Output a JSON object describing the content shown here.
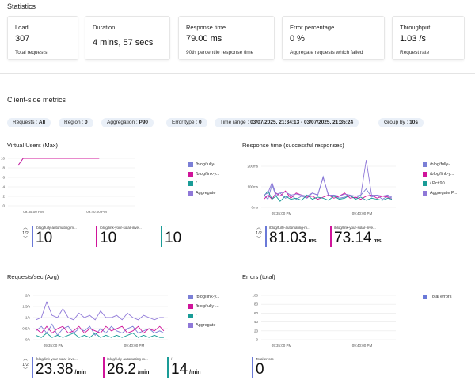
{
  "statistics": {
    "title": "Statistics",
    "cards": [
      {
        "label": "Load",
        "value": "307",
        "sub": "Total requests"
      },
      {
        "label": "Duration",
        "value": "4 mins, 57 secs",
        "sub": ""
      },
      {
        "label": "Response time",
        "value": "79.00 ms",
        "sub": "90th percentile response time"
      },
      {
        "label": "Error percentage",
        "value": "0 %",
        "sub": "Aggregate requests which failed"
      },
      {
        "label": "Throughput",
        "value": "1.03 /s",
        "sub": "Request rate"
      }
    ]
  },
  "client_metrics": {
    "title": "Client-side metrics",
    "filters": [
      {
        "label": "Requests",
        "value": "All"
      },
      {
        "label": "Region",
        "value": "0"
      },
      {
        "label": "Aggregation",
        "value": "P90"
      },
      {
        "label": "Error type",
        "value": "0"
      },
      {
        "label": "Time range",
        "value": "03/07/2025, 21:34:13 - 03/07/2025, 21:35:24"
      },
      {
        "label": "Group by",
        "value": "10s"
      }
    ]
  },
  "colors": {
    "aggregate": "#7b7fd6",
    "purple": "#d0149a",
    "teal": "#1a9c97",
    "violet": "#8f78d8",
    "blue": "#6a79d8"
  },
  "charts": {
    "vu": {
      "title": "Virtual Users (Max)",
      "legend": [
        "/blog/fully-...",
        "/blog/link-y...",
        "/",
        "Aggregate"
      ],
      "pager": "1/2",
      "tiles": [
        {
          "label": "/blog/fully-automating-m...",
          "value": "10",
          "unit": ""
        },
        {
          "label": "/blog/link-your-solar-inve...",
          "value": "10",
          "unit": ""
        },
        {
          "label": "/",
          "value": "10",
          "unit": ""
        }
      ]
    },
    "rt": {
      "title": "Response time (successful responses)",
      "legend": [
        "/blog/fully-...",
        "/blog/link-y...",
        "/ Pct 90",
        "Aggregate P..."
      ],
      "pager": "1/2",
      "tiles": [
        {
          "label": "/blog/fully-automating-m...",
          "value": "81.03",
          "unit": "ms"
        },
        {
          "label": "/blog/link-your-solar-inve...",
          "value": "73.14",
          "unit": "ms"
        }
      ]
    },
    "rps": {
      "title": "Requests/sec (Avg)",
      "legend": [
        "/blog/link-y...",
        "/blog/fully-...",
        "/",
        "Aggregate"
      ],
      "pager": "1/2",
      "tiles": [
        {
          "label": "/blog/link-your-solar-inve...",
          "value": "23.38",
          "unit": "/min"
        },
        {
          "label": "/blog/fully-automating-m...",
          "value": "26.2",
          "unit": "/min"
        },
        {
          "label": "/",
          "value": "14",
          "unit": "/min"
        }
      ]
    },
    "err": {
      "title": "Errors (total)",
      "legend": [
        "Total errors"
      ],
      "tiles": [
        {
          "label": "Total errors",
          "value": "0",
          "unit": ""
        }
      ]
    }
  },
  "chart_data": [
    {
      "type": "line",
      "title": "Virtual Users (Max)",
      "x_ticks": [
        "09:35:00 PM",
        "09:40:00 PM"
      ],
      "y_ticks": [
        "0",
        "2",
        "4",
        "6",
        "8",
        "10"
      ],
      "ylim": [
        0,
        10
      ],
      "x": [
        0,
        0.08,
        0.12,
        0.5,
        0.72,
        1.0
      ],
      "series": [
        {
          "name": "/blog/fully-...",
          "values": [
            null,
            8.5,
            10,
            10,
            10,
            null
          ]
        },
        {
          "name": "Aggregate",
          "values": [
            null,
            8.5,
            10,
            10,
            10,
            null
          ]
        }
      ]
    },
    {
      "type": "line",
      "title": "Response time (successful responses)",
      "x_ticks": [
        "09:35:00 PM",
        "09:40:00 PM"
      ],
      "y_ticks": [
        "0ms",
        "100ms",
        "200ms"
      ],
      "ylim": [
        0,
        200
      ],
      "x": [
        0.02,
        0.05,
        0.08,
        0.11,
        0.14,
        0.18,
        0.22,
        0.26,
        0.3,
        0.34,
        0.38,
        0.42,
        0.46,
        0.5,
        0.54,
        0.58,
        0.62,
        0.66,
        0.7,
        0.74,
        0.78,
        0.82,
        0.86,
        0.9,
        0.94,
        0.97
      ],
      "series": [
        {
          "name": "/blog/fully-...",
          "values": [
            60,
            40,
            110,
            55,
            70,
            45,
            60,
            40,
            55,
            45,
            70,
            60,
            150,
            55,
            60,
            45,
            50,
            55,
            45,
            60,
            90,
            50,
            60,
            40,
            55,
            45
          ]
        },
        {
          "name": "/blog/link-y...",
          "values": [
            40,
            60,
            40,
            70,
            55,
            80,
            45,
            70,
            60,
            50,
            55,
            40,
            50,
            60,
            45,
            55,
            70,
            45,
            50,
            40,
            55,
            60,
            45,
            55,
            50,
            40
          ]
        },
        {
          "name": "/ Pct 90",
          "values": [
            55,
            80,
            40,
            55,
            30,
            55,
            40,
            45,
            35,
            60,
            40,
            50,
            45,
            35,
            55,
            40,
            45,
            60,
            40,
            50,
            35,
            45,
            40,
            35,
            45,
            40
          ]
        },
        {
          "name": "Aggregate P...",
          "values": [
            60,
            70,
            120,
            65,
            70,
            75,
            60,
            65,
            60,
            55,
            70,
            60,
            145,
            60,
            60,
            55,
            65,
            60,
            55,
            60,
            230,
            60,
            60,
            55,
            60,
            50
          ]
        }
      ]
    },
    {
      "type": "line",
      "title": "Requests/sec (Avg)",
      "x_ticks": [
        "09:35:00 PM",
        "09:40:00 PM"
      ],
      "y_ticks": [
        "0/s",
        "0.5/s",
        "1/s",
        "1.5/s",
        "2/s"
      ],
      "ylim": [
        0,
        2
      ],
      "x": [
        0.02,
        0.06,
        0.1,
        0.14,
        0.18,
        0.22,
        0.26,
        0.3,
        0.34,
        0.38,
        0.42,
        0.46,
        0.5,
        0.54,
        0.58,
        0.62,
        0.66,
        0.7,
        0.74,
        0.78,
        0.82,
        0.86,
        0.9,
        0.94,
        0.97
      ],
      "series": [
        {
          "name": "/blog/link-y...",
          "values": [
            0.4,
            0.6,
            0.3,
            0.7,
            0.2,
            0.5,
            0.6,
            0.3,
            0.5,
            0.4,
            0.6,
            0.2,
            0.5,
            0.3,
            0.6,
            0.4,
            0.3,
            0.5,
            0.6,
            0.3,
            0.4,
            0.5,
            0.3,
            0.4,
            0.3
          ]
        },
        {
          "name": "/blog/fully-...",
          "values": [
            0.5,
            0.3,
            0.6,
            0.3,
            0.5,
            0.6,
            0.3,
            0.4,
            0.6,
            0.3,
            0.5,
            0.4,
            0.3,
            0.6,
            0.4,
            0.5,
            0.6,
            0.3,
            0.4,
            0.6,
            0.3,
            0.5,
            0.4,
            0.6,
            0.4
          ]
        },
        {
          "name": "/",
          "values": [
            0.2,
            0.1,
            0.3,
            0.1,
            0.2,
            0.1,
            0.2,
            0.3,
            0.1,
            0.2,
            0.1,
            0.3,
            0.1,
            0.2,
            0.1,
            0.2,
            0.1,
            0.2,
            0.3,
            0.1,
            0.2,
            0.1,
            0.2,
            0.1,
            0.1
          ]
        },
        {
          "name": "Aggregate",
          "values": [
            0.9,
            1.0,
            1.7,
            1.1,
            1.0,
            1.4,
            1.0,
            0.9,
            1.2,
            1.0,
            1.1,
            0.9,
            1.3,
            1.0,
            1.0,
            1.1,
            0.9,
            1.2,
            1.0,
            0.9,
            1.1,
            1.0,
            0.9,
            1.0,
            1.0
          ]
        }
      ]
    },
    {
      "type": "line",
      "title": "Errors (total)",
      "x_ticks": [
        "09:35:00 PM",
        "09:40:00 PM"
      ],
      "y_ticks": [
        "0",
        "20",
        "40",
        "60",
        "80",
        "100"
      ],
      "ylim": [
        0,
        100
      ],
      "series": [
        {
          "name": "Total errors",
          "values": []
        }
      ]
    }
  ]
}
